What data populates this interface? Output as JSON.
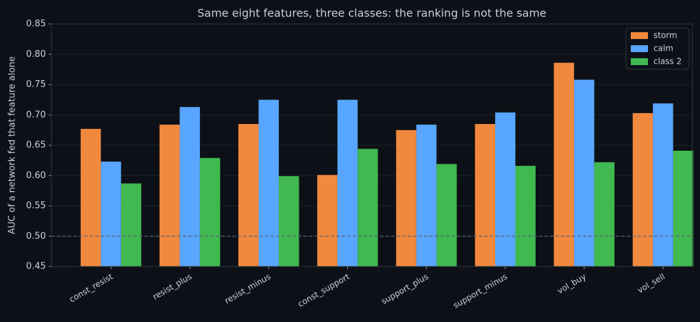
{
  "chart_data": {
    "type": "bar",
    "title": "Same eight features, three classes: the ranking is not the same",
    "y_label": "AUC of a network fed that feature alone",
    "categories": [
      "const_resist",
      "resist_plus",
      "resist_minus",
      "const_support",
      "support_plus",
      "support_minus",
      "vol_buy",
      "vol_sell"
    ],
    "series": [
      {
        "name": "storm",
        "color": "#f0883e",
        "values": [
          0.677,
          0.684,
          0.685,
          0.601,
          0.675,
          0.685,
          0.786,
          0.703
        ]
      },
      {
        "name": "calm",
        "color": "#58a6ff",
        "values": [
          0.623,
          0.713,
          0.725,
          0.725,
          0.684,
          0.704,
          0.758,
          0.719
        ]
      },
      {
        "name": "class 2",
        "color": "#3fb950",
        "values": [
          0.587,
          0.629,
          0.599,
          0.644,
          0.619,
          0.616,
          0.622,
          0.641
        ]
      }
    ],
    "reference_line": 0.5,
    "ylim": [
      0.45,
      0.85
    ],
    "yticks": [
      {
        "value": 0.45,
        "label": "0.45"
      },
      {
        "value": 0.5,
        "label": "0.50"
      },
      {
        "value": 0.55,
        "label": "0.55"
      },
      {
        "value": 0.6,
        "label": "0.60"
      },
      {
        "value": 0.65,
        "label": "0.65"
      },
      {
        "value": 0.7,
        "label": "0.70"
      },
      {
        "value": 0.75,
        "label": "0.75"
      },
      {
        "value": 0.8,
        "label": "0.80"
      },
      {
        "value": 0.85,
        "label": "0.85"
      }
    ],
    "grid": true,
    "legend": "upper right"
  }
}
